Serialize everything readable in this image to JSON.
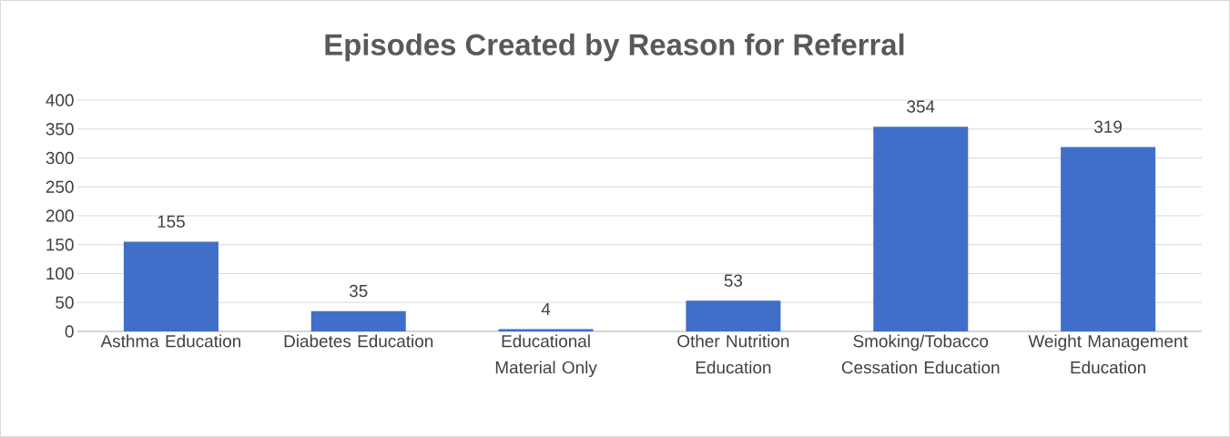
{
  "chart_data": {
    "type": "bar",
    "title": "Episodes Created by Reason for Referral",
    "categories": [
      "Asthma Education",
      "Diabetes Education",
      "Educational Material Only",
      "Other Nutrition Education",
      "Smoking/Tobacco Cessation Education",
      "Weight Management Education"
    ],
    "values": [
      155,
      35,
      4,
      53,
      354,
      319
    ],
    "color": "#3f6fc9",
    "ylim": [
      0,
      400
    ],
    "yticks": [
      0,
      50,
      100,
      150,
      200,
      250,
      300,
      350,
      400
    ],
    "grid": "y",
    "data_labels": true
  }
}
